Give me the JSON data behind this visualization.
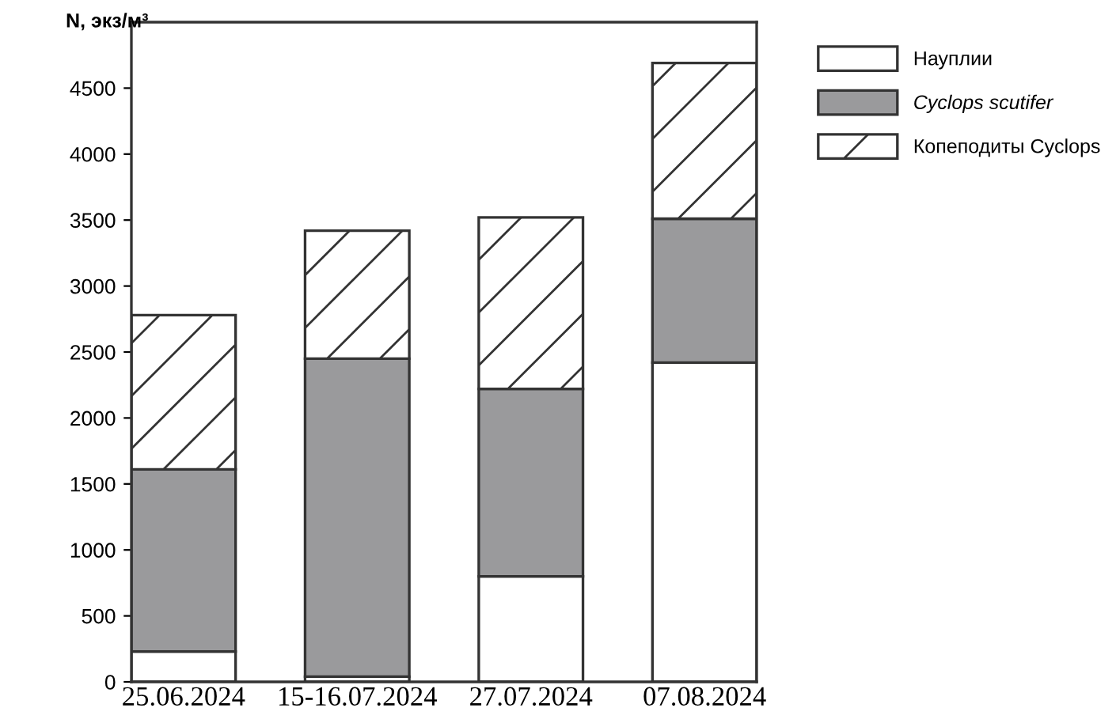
{
  "chart_data": {
    "type": "bar",
    "stacked": true,
    "ylabel": "N, экз/м³",
    "categories": [
      "25.06.2024",
      "15-16.07.2024",
      "27.07.2024",
      "07.08.2024"
    ],
    "series": [
      {
        "name": "Науплии",
        "color": "#ffffff",
        "values": [
          230,
          40,
          800,
          2420
        ]
      },
      {
        "name": "Cyclops scutifer",
        "color": "#9a9a9c",
        "values": [
          1380,
          2410,
          1420,
          1090
        ]
      },
      {
        "name": "Копеподиты Cyclops",
        "color": "#ffffff",
        "values": [
          1170,
          970,
          1300,
          1180
        ]
      }
    ],
    "ylim": [
      0,
      5000
    ],
    "yticks": [
      0,
      500,
      1000,
      1500,
      2000,
      2500,
      3000,
      3500,
      4000,
      4500
    ],
    "grid": false,
    "legend": "top right"
  }
}
